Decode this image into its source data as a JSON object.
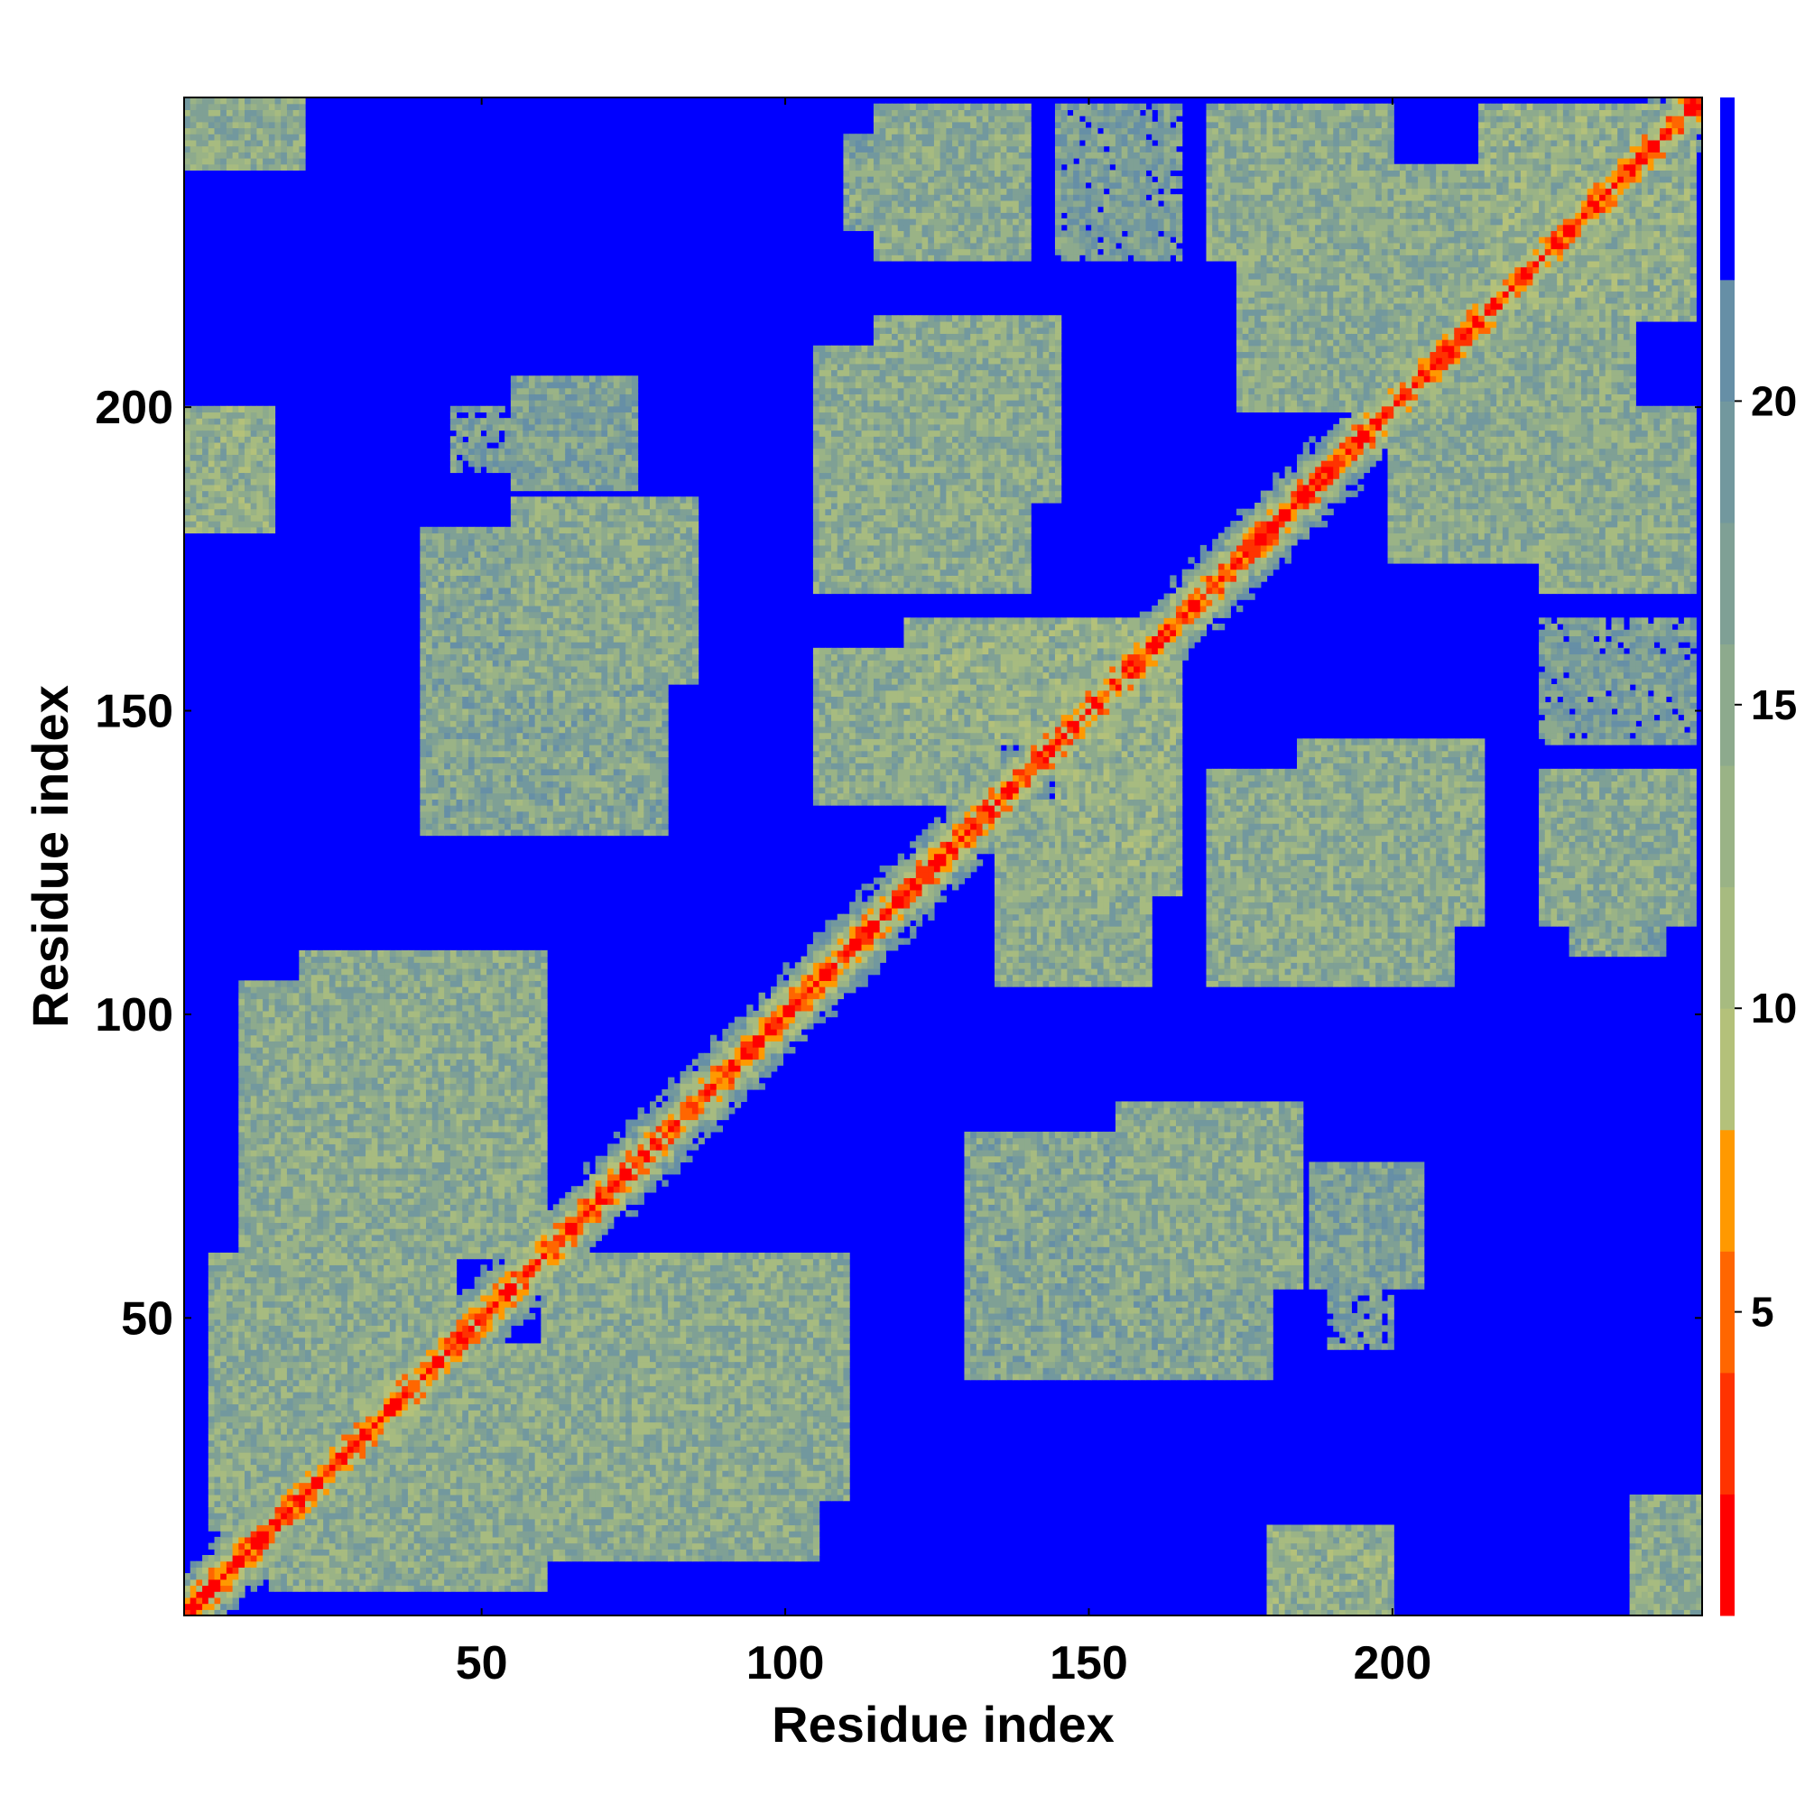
{
  "chart_data": {
    "type": "heatmap",
    "title": "",
    "xlabel": "Residue index",
    "ylabel": "Residue index",
    "n_residues": 251,
    "xlim": [
      1,
      251
    ],
    "ylim": [
      1,
      251
    ],
    "x_ticks": [
      50,
      100,
      150,
      200
    ],
    "y_ticks": [
      50,
      100,
      150,
      200
    ],
    "value_range": [
      0,
      25
    ],
    "cutoff": 22,
    "colorbar": {
      "ticks": [
        5,
        10,
        15,
        20
      ],
      "levels": [
        {
          "max": 2,
          "color": "#ff0000"
        },
        {
          "max": 4,
          "color": "#ff3300"
        },
        {
          "max": 6,
          "color": "#ff6600"
        },
        {
          "max": 8,
          "color": "#ff9900"
        },
        {
          "max": 10,
          "color": "#b4c17a"
        },
        {
          "max": 12,
          "color": "#a7bb80"
        },
        {
          "max": 14,
          "color": "#9ab386"
        },
        {
          "max": 16,
          "color": "#8daa8d"
        },
        {
          "max": 18,
          "color": "#7fa095"
        },
        {
          "max": 20,
          "color": "#72989e"
        },
        {
          "max": 22,
          "color": "#668fa6"
        },
        {
          "max": 25,
          "color": "#0000ff"
        }
      ]
    },
    "contact_blocks": [
      {
        "x": [
          130,
          155
        ],
        "y": [
          40,
          80
        ],
        "d": 16
      },
      {
        "x": [
          155,
          185
        ],
        "y": [
          55,
          85
        ],
        "d": 15
      },
      {
        "x": [
          187,
          205
        ],
        "y": [
          55,
          75
        ],
        "d": 17
      },
      {
        "x": [
          120,
          160
        ],
        "y": [
          145,
          165
        ],
        "d": 14
      },
      {
        "x": [
          135,
          160
        ],
        "y": [
          105,
          135
        ],
        "d": 15
      },
      {
        "x": [
          170,
          210
        ],
        "y": [
          105,
          140
        ],
        "d": 15
      },
      {
        "x": [
          230,
          245
        ],
        "y": [
          110,
          135
        ],
        "d": 16
      },
      {
        "x": [
          40,
          80
        ],
        "y": [
          155,
          180
        ],
        "d": 16
      },
      {
        "x": [
          40,
          80
        ],
        "y": [
          135,
          145
        ],
        "d": 17
      },
      {
        "x": [
          45,
          75
        ],
        "y": [
          190,
          200
        ],
        "d": 18
      },
      {
        "x": [
          115,
          140
        ],
        "y": [
          225,
          250
        ],
        "d": 15
      },
      {
        "x": [
          145,
          165
        ],
        "y": [
          225,
          250
        ],
        "d": 18
      },
      {
        "x": [
          115,
          145
        ],
        "y": [
          185,
          215
        ],
        "d": 15
      },
      {
        "x": [
          170,
          200
        ],
        "y": [
          225,
          250
        ],
        "d": 15
      },
      {
        "x": [
          200,
          240
        ],
        "y": [
          175,
          215
        ],
        "d": 15
      },
      {
        "x": [
          220,
          250
        ],
        "y": [
          215,
          250
        ],
        "d": 14
      },
      {
        "x": [
          10,
          60
        ],
        "y": [
          60,
          105
        ],
        "d": 15
      },
      {
        "x": [
          70,
          110
        ],
        "y": [
          20,
          60
        ],
        "d": 15
      },
      {
        "x": [
          5,
          30
        ],
        "y": [
          15,
          60
        ],
        "d": 15
      },
      {
        "x": [
          30,
          60
        ],
        "y": [
          20,
          45
        ],
        "d": 15
      },
      {
        "x": [
          240,
          252
        ],
        "y": [
          1,
          20
        ],
        "d": 15
      },
      {
        "x": [
          180,
          200
        ],
        "y": [
          1,
          15
        ],
        "d": 14
      }
    ]
  }
}
